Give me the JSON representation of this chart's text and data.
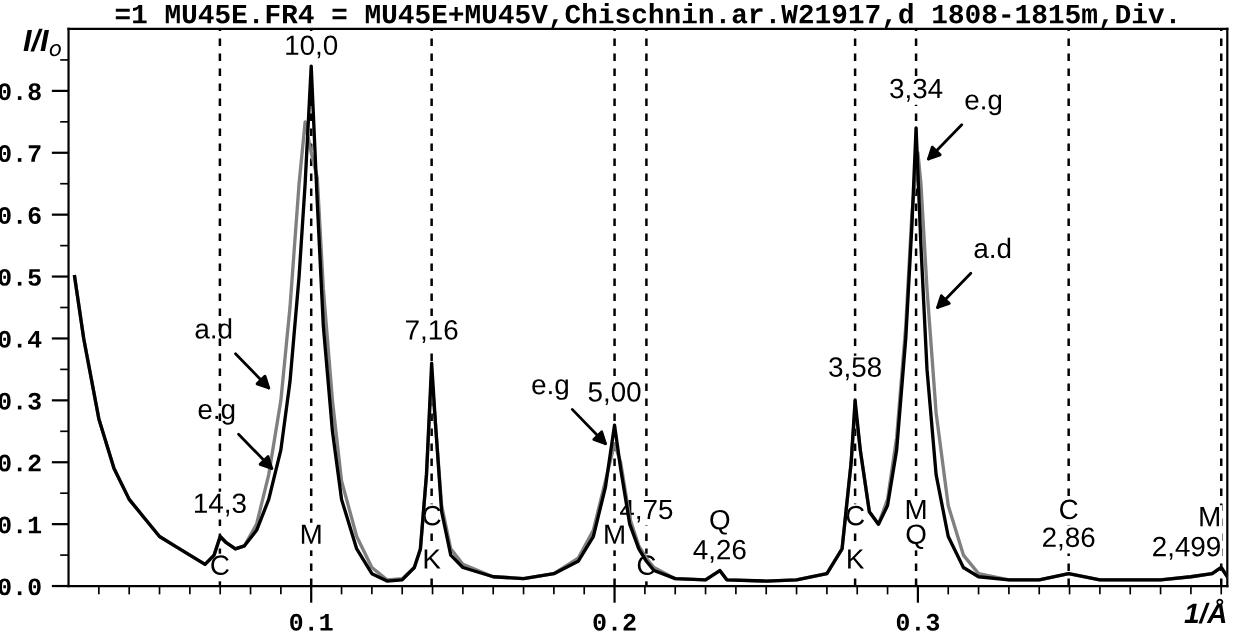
{
  "chart_data": {
    "type": "line",
    "title": "=1 MU45E.FR4 = MU45E+MU45V,Chischnin.ar.W21917,d 1808-1815m,Div.",
    "xlabel": "1/Å",
    "ylabel": "I/I$_{o}$",
    "xlim": [
      0.02,
      0.402
    ],
    "ylim": [
      0,
      0.9
    ],
    "xticks": [
      {
        "value": 0.03,
        "label": null
      },
      {
        "value": 0.04,
        "label": null
      },
      {
        "value": 0.05,
        "label": null
      },
      {
        "value": 0.06,
        "label": null
      },
      {
        "value": 0.07,
        "label": null
      },
      {
        "value": 0.08,
        "label": null
      },
      {
        "value": 0.09,
        "label": null
      },
      {
        "value": 0.1,
        "label": "0.1"
      },
      {
        "value": 0.11,
        "label": null
      },
      {
        "value": 0.12,
        "label": null
      },
      {
        "value": 0.13,
        "label": null
      },
      {
        "value": 0.14,
        "label": null
      },
      {
        "value": 0.15,
        "label": null
      },
      {
        "value": 0.16,
        "label": null
      },
      {
        "value": 0.17,
        "label": null
      },
      {
        "value": 0.18,
        "label": null
      },
      {
        "value": 0.19,
        "label": null
      },
      {
        "value": 0.2,
        "label": "0.2"
      },
      {
        "value": 0.21,
        "label": null
      },
      {
        "value": 0.22,
        "label": null
      },
      {
        "value": 0.23,
        "label": null
      },
      {
        "value": 0.24,
        "label": null
      },
      {
        "value": 0.25,
        "label": null
      },
      {
        "value": 0.26,
        "label": null
      },
      {
        "value": 0.27,
        "label": null
      },
      {
        "value": 0.28,
        "label": null
      },
      {
        "value": 0.29,
        "label": null
      },
      {
        "value": 0.3,
        "label": "0.3"
      },
      {
        "value": 0.31,
        "label": null
      },
      {
        "value": 0.32,
        "label": null
      },
      {
        "value": 0.33,
        "label": null
      },
      {
        "value": 0.34,
        "label": null
      },
      {
        "value": 0.35,
        "label": null
      },
      {
        "value": 0.36,
        "label": null
      },
      {
        "value": 0.37,
        "label": null
      },
      {
        "value": 0.38,
        "label": null
      },
      {
        "value": 0.39,
        "label": null
      },
      {
        "value": 0.4,
        "label": null
      }
    ],
    "yticks": [
      {
        "value": 0,
        "label": "0.0"
      },
      {
        "value": 0.05,
        "label": null
      },
      {
        "value": 0.1,
        "label": "0.1"
      },
      {
        "value": 0.15,
        "label": null
      },
      {
        "value": 0.2,
        "label": "0.2"
      },
      {
        "value": 0.25,
        "label": null
      },
      {
        "value": 0.3,
        "label": "0.3"
      },
      {
        "value": 0.35,
        "label": null
      },
      {
        "value": 0.4,
        "label": "0.4"
      },
      {
        "value": 0.45,
        "label": null
      },
      {
        "value": 0.5,
        "label": "0.5"
      },
      {
        "value": 0.55,
        "label": null
      },
      {
        "value": 0.6,
        "label": "0.6"
      },
      {
        "value": 0.65,
        "label": null
      },
      {
        "value": 0.7,
        "label": "0.7"
      },
      {
        "value": 0.75,
        "label": null
      },
      {
        "value": 0.8,
        "label": "0.8"
      },
      {
        "value": 0.85,
        "label": null
      }
    ],
    "grid": false,
    "legend": false,
    "marker": "none",
    "line_style": "solid",
    "series": [
      {
        "color": "#808080",
        "x": [
          0.022,
          0.025,
          0.03,
          0.035,
          0.04,
          0.045,
          0.05,
          0.055,
          0.06,
          0.065,
          0.068,
          0.07,
          0.072,
          0.075,
          0.078,
          0.082,
          0.086,
          0.09,
          0.093,
          0.096,
          0.098,
          0.1,
          0.102,
          0.104,
          0.107,
          0.11,
          0.115,
          0.12,
          0.125,
          0.13,
          0.134,
          0.136,
          0.138,
          0.1397,
          0.141,
          0.143,
          0.146,
          0.15,
          0.16,
          0.17,
          0.18,
          0.188,
          0.193,
          0.197,
          0.2,
          0.202,
          0.205,
          0.208,
          0.2105,
          0.213,
          0.22,
          0.23,
          0.2347,
          0.237,
          0.25,
          0.26,
          0.27,
          0.275,
          0.278,
          0.2793,
          0.281,
          0.284,
          0.287,
          0.29,
          0.293,
          0.296,
          0.298,
          0.3,
          0.301,
          0.303,
          0.306,
          0.31,
          0.315,
          0.32,
          0.33,
          0.34,
          0.3497,
          0.36,
          0.38,
          0.39,
          0.397,
          0.4,
          0.402
        ],
        "values": [
          0.5,
          0.4,
          0.27,
          0.19,
          0.14,
          0.11,
          0.08,
          0.065,
          0.05,
          0.035,
          0.05,
          0.08,
          0.07,
          0.06,
          0.065,
          0.1,
          0.18,
          0.3,
          0.45,
          0.65,
          0.75,
          0.7,
          0.66,
          0.48,
          0.3,
          0.17,
          0.08,
          0.03,
          0.01,
          0.012,
          0.03,
          0.06,
          0.18,
          0.34,
          0.26,
          0.13,
          0.06,
          0.035,
          0.015,
          0.012,
          0.02,
          0.045,
          0.09,
          0.17,
          0.23,
          0.2,
          0.11,
          0.065,
          0.045,
          0.03,
          0.012,
          0.01,
          0.025,
          0.01,
          0.008,
          0.01,
          0.02,
          0.06,
          0.2,
          0.29,
          0.22,
          0.12,
          0.1,
          0.14,
          0.24,
          0.42,
          0.6,
          0.7,
          0.65,
          0.48,
          0.28,
          0.13,
          0.05,
          0.02,
          0.01,
          0.01,
          0.02,
          0.01,
          0.01,
          0.015,
          0.02,
          0.03,
          0.015
        ]
      },
      {
        "color": "#000000",
        "x": [
          0.022,
          0.025,
          0.03,
          0.035,
          0.04,
          0.045,
          0.05,
          0.055,
          0.06,
          0.065,
          0.068,
          0.07,
          0.072,
          0.075,
          0.078,
          0.082,
          0.086,
          0.09,
          0.093,
          0.096,
          0.098,
          0.1,
          0.102,
          0.104,
          0.107,
          0.11,
          0.115,
          0.12,
          0.125,
          0.13,
          0.134,
          0.136,
          0.138,
          0.1397,
          0.141,
          0.143,
          0.146,
          0.15,
          0.16,
          0.17,
          0.18,
          0.188,
          0.193,
          0.197,
          0.2,
          0.202,
          0.205,
          0.208,
          0.2105,
          0.213,
          0.22,
          0.23,
          0.2347,
          0.237,
          0.25,
          0.26,
          0.27,
          0.275,
          0.278,
          0.2793,
          0.281,
          0.284,
          0.287,
          0.29,
          0.293,
          0.296,
          0.298,
          0.2994,
          0.301,
          0.303,
          0.306,
          0.31,
          0.315,
          0.32,
          0.33,
          0.34,
          0.3497,
          0.36,
          0.38,
          0.39,
          0.397,
          0.4,
          0.402
        ],
        "values": [
          0.5,
          0.4,
          0.27,
          0.19,
          0.14,
          0.11,
          0.08,
          0.065,
          0.05,
          0.035,
          0.05,
          0.08,
          0.07,
          0.06,
          0.065,
          0.09,
          0.14,
          0.22,
          0.33,
          0.5,
          0.65,
          0.84,
          0.62,
          0.42,
          0.25,
          0.14,
          0.06,
          0.02,
          0.008,
          0.01,
          0.03,
          0.06,
          0.18,
          0.36,
          0.26,
          0.12,
          0.05,
          0.03,
          0.015,
          0.012,
          0.02,
          0.04,
          0.08,
          0.16,
          0.26,
          0.19,
          0.1,
          0.06,
          0.04,
          0.025,
          0.012,
          0.01,
          0.025,
          0.01,
          0.008,
          0.01,
          0.02,
          0.06,
          0.2,
          0.3,
          0.22,
          0.12,
          0.1,
          0.13,
          0.22,
          0.4,
          0.58,
          0.74,
          0.55,
          0.35,
          0.18,
          0.08,
          0.03,
          0.015,
          0.01,
          0.01,
          0.02,
          0.01,
          0.01,
          0.015,
          0.02,
          0.03,
          0.015
        ]
      }
    ],
    "ref_lines": [
      {
        "axis": "x",
        "value": 0.0699,
        "line_style": "dashed",
        "color": "#000000"
      },
      {
        "axis": "x",
        "value": 0.1,
        "line_style": "dashed",
        "color": "#000000"
      },
      {
        "axis": "x",
        "value": 0.1397,
        "line_style": "dashed",
        "color": "#000000"
      },
      {
        "axis": "x",
        "value": 0.2,
        "line_style": "dashed",
        "color": "#000000"
      },
      {
        "axis": "x",
        "value": 0.2105,
        "line_style": "dashed",
        "color": "#000000"
      },
      {
        "axis": "x",
        "value": 0.2793,
        "line_style": "dashed",
        "color": "#000000"
      },
      {
        "axis": "x",
        "value": 0.2994,
        "line_style": "dashed",
        "color": "#000000"
      },
      {
        "axis": "x",
        "value": 0.3497,
        "line_style": "dashed",
        "color": "#000000"
      },
      {
        "axis": "x",
        "value": 0.4,
        "line_style": "dashed",
        "color": "#000000"
      }
    ],
    "annotations": [
      {
        "text": "14,3",
        "x": 0.0699,
        "y": 0.1
      },
      {
        "text": "C",
        "x": 0.0699,
        "y": 0.0
      },
      {
        "text": "10,0",
        "x": 0.1,
        "y": 0.84
      },
      {
        "text": "M",
        "x": 0.1,
        "y": 0.05
      },
      {
        "text": "7,16",
        "x": 0.1397,
        "y": 0.38
      },
      {
        "text": "C",
        "x": 0.1397,
        "y": 0.08
      },
      {
        "text": "K",
        "x": 0.1397,
        "y": 0.01
      },
      {
        "text": "5,00",
        "x": 0.2,
        "y": 0.28
      },
      {
        "text": "M",
        "x": 0.2,
        "y": 0.05
      },
      {
        "text": "4,75",
        "x": 0.2105,
        "y": 0.09
      },
      {
        "text": "C",
        "x": 0.2105,
        "y": 0.0
      },
      {
        "text": "Q\n4,26",
        "x": 0.2347,
        "y": 0.025
      },
      {
        "text": "3,58",
        "x": 0.2793,
        "y": 0.32
      },
      {
        "text": "C",
        "x": 0.2793,
        "y": 0.08
      },
      {
        "text": "K",
        "x": 0.2793,
        "y": 0.01
      },
      {
        "text": "3,34",
        "x": 0.2994,
        "y": 0.77
      },
      {
        "text": "M",
        "x": 0.2994,
        "y": 0.09
      },
      {
        "text": "Q",
        "x": 0.2994,
        "y": 0.05
      },
      {
        "text": "C",
        "x": 0.3497,
        "y": 0.09
      },
      {
        "text": "2,86",
        "x": 0.3497,
        "y": 0.045
      },
      {
        "text": "M\n2,499",
        "x": 0.4,
        "y": 0.03
      },
      {
        "text": "a.d",
        "x": 0.088,
        "y": 0.31
      },
      {
        "text": "e.g",
        "x": 0.089,
        "y": 0.18
      },
      {
        "text": "e.g",
        "x": 0.199,
        "y": 0.22
      },
      {
        "text": "e.g",
        "x": 0.3015,
        "y": 0.68
      },
      {
        "text": "a.d",
        "x": 0.3045,
        "y": 0.44
      }
    ]
  }
}
